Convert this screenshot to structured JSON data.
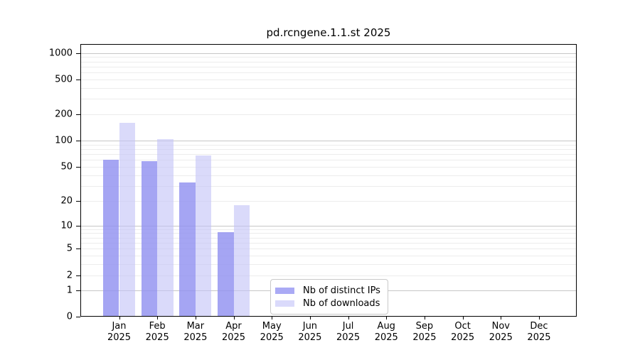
{
  "chart_data": {
    "type": "bar",
    "title": "pd.rcngene.1.1.st 2025",
    "year_label": "2025",
    "categories": [
      "Jan",
      "Feb",
      "Mar",
      "Apr",
      "May",
      "Jun",
      "Jul",
      "Aug",
      "Sep",
      "Oct",
      "Nov",
      "Dec"
    ],
    "series": [
      {
        "name": "Nb of distinct IPs",
        "color": "#aaaaf5",
        "fill": "rgba(145,145,240,0.82)",
        "values": [
          58,
          56,
          32,
          8,
          0,
          0,
          0,
          0,
          0,
          0,
          0,
          0
        ]
      },
      {
        "name": "Nb of downloads",
        "color": "#dadafb",
        "fill": "rgba(195,195,247,0.62)",
        "values": [
          155,
          100,
          65,
          17,
          0,
          0,
          0,
          0,
          0,
          0,
          0,
          0
        ]
      }
    ],
    "y_axis": {
      "scale": "log1p",
      "ticks": [
        0,
        1,
        2,
        5,
        10,
        20,
        50,
        100,
        200,
        500,
        1000
      ],
      "major_gridlines": [
        1,
        10,
        100,
        1000
      ],
      "minor_gridlines": [
        2,
        3,
        4,
        5,
        6,
        7,
        8,
        9,
        20,
        30,
        40,
        50,
        60,
        70,
        80,
        90,
        200,
        300,
        400,
        500,
        600,
        700,
        800,
        900
      ],
      "max_value": 1230
    },
    "legend": {
      "position": "inside-bottom-center",
      "entries": [
        "Nb of distinct IPs",
        "Nb of downloads"
      ]
    },
    "colors": {
      "major_grid": "#c6c6c6",
      "minor_grid": "#ececec",
      "frame": "#000000",
      "legend_border": "#c9c9c9"
    }
  }
}
